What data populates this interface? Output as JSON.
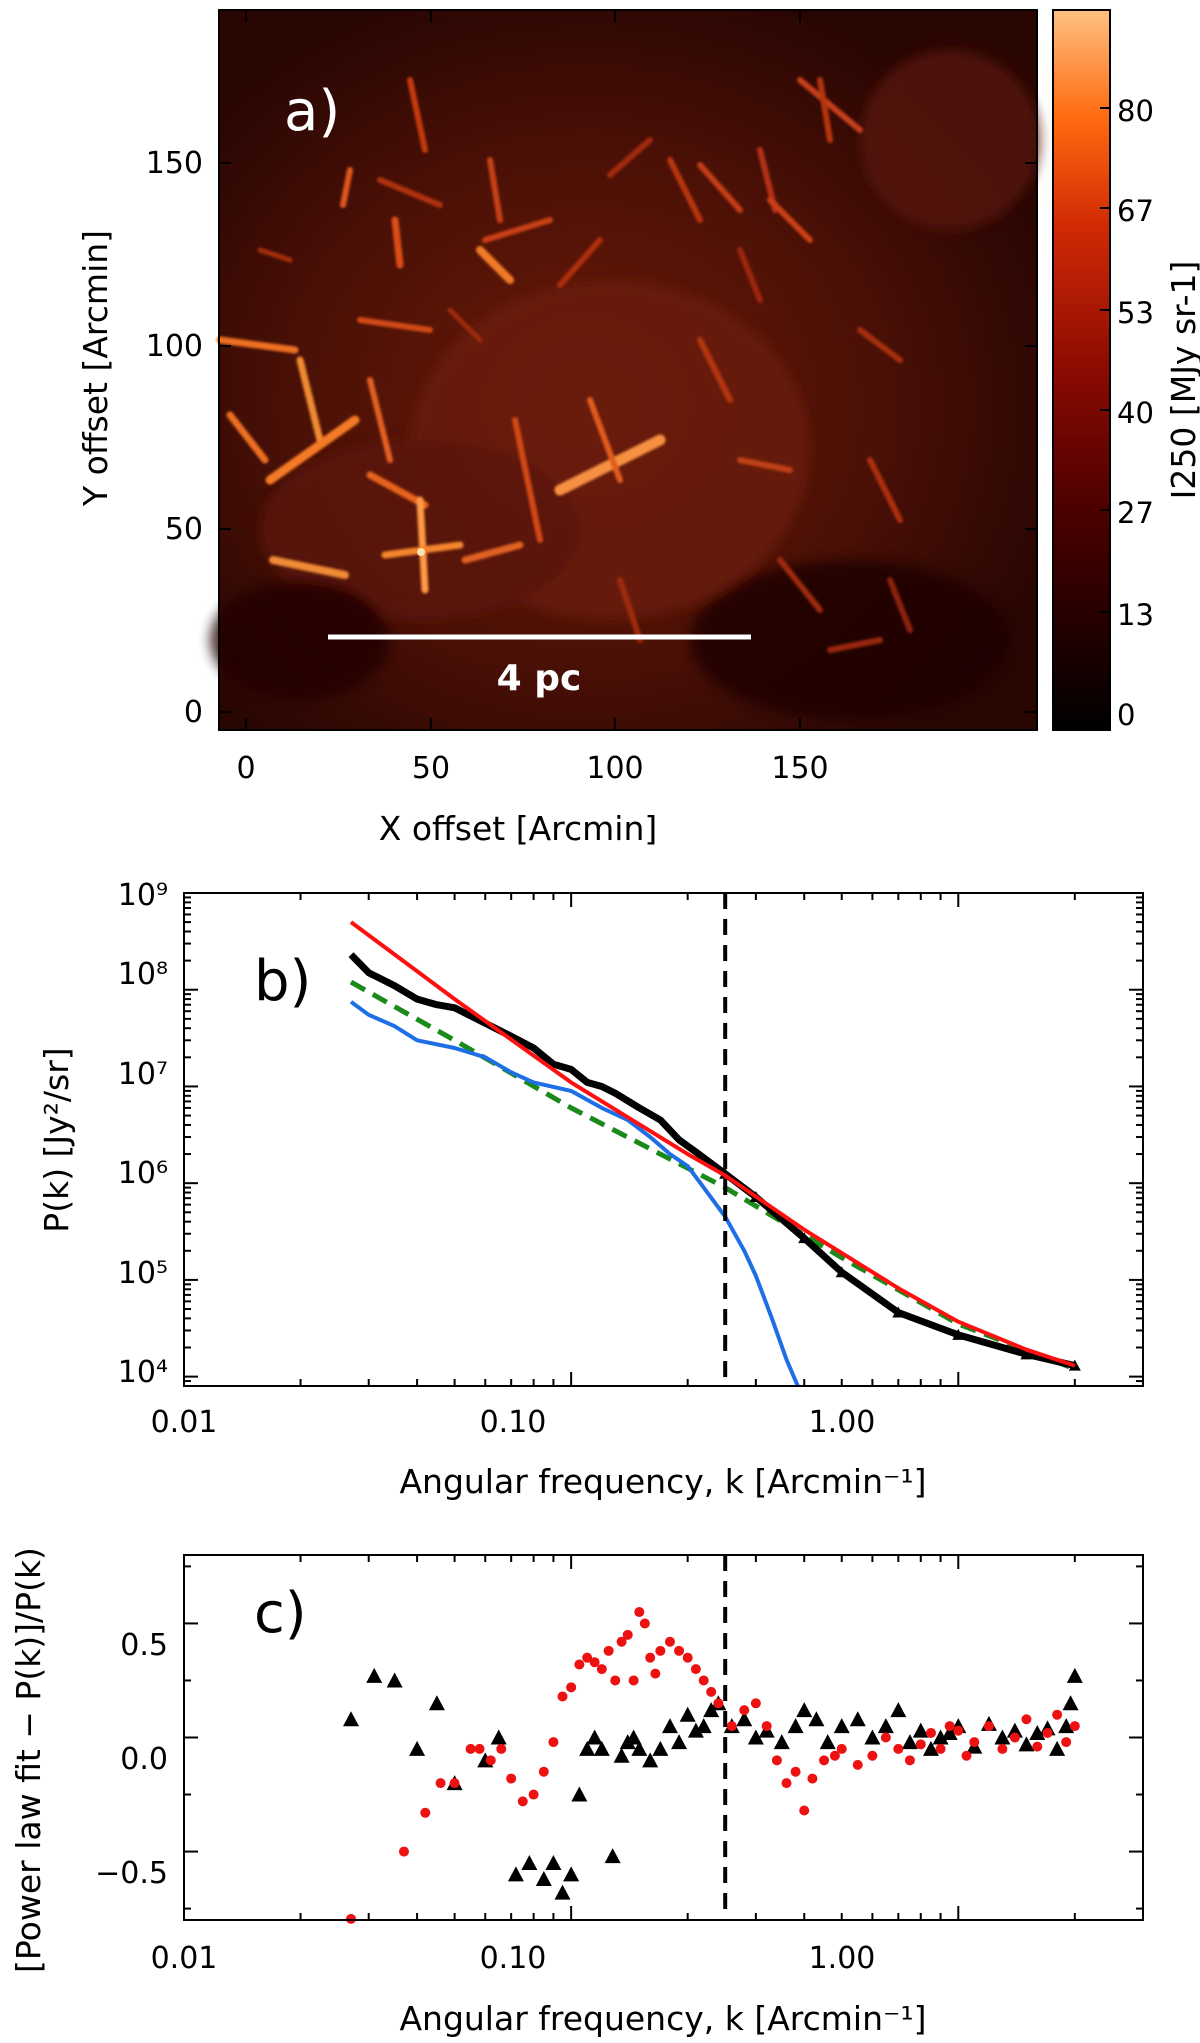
{
  "panel_a": {
    "panel_label": "a)",
    "xlabel": "X offset [Arcmin]",
    "ylabel": "Y offset [Arcmin]",
    "xticks": [
      "0",
      "50",
      "100",
      "150"
    ],
    "yticks": [
      "0",
      "50",
      "100",
      "150"
    ],
    "scalebar_label": "4 pc",
    "colorbar_label": "I250 [MJy sr-1]",
    "colorbar_ticks": [
      "0",
      "13",
      "27",
      "40",
      "53",
      "67",
      "80"
    ]
  },
  "panel_b": {
    "panel_label": "b)",
    "xlabel": "Angular frequency, k [Arcmin⁻¹]",
    "ylabel": "P(k) [Jy²/sr]",
    "xticks": [
      "0.01",
      "0.10",
      "1.00"
    ],
    "yticks": [
      "10⁴",
      "10⁵",
      "10⁶",
      "10⁷",
      "10⁸",
      "10⁹"
    ]
  },
  "panel_c": {
    "panel_label": "c)",
    "xlabel": "Angular frequency, k [Arcmin⁻¹]",
    "ylabel": "[Power law fit − P(k)]/P(k)",
    "xticks": [
      "0.01",
      "0.10",
      "1.00"
    ],
    "yticks": [
      "−0.5",
      "0.0",
      "0.5"
    ]
  },
  "chart_data": [
    {
      "type": "heatmap",
      "panel": "a",
      "xlabel": "X offset [Arcmin]",
      "ylabel": "Y offset [Arcmin]",
      "xlim": [
        -8,
        190
      ],
      "ylim": [
        -5,
        190
      ],
      "colorbar": {
        "label": "I250 [MJy sr-1]",
        "range": [
          0,
          80
        ],
        "colormap": "black-red-orange-white"
      },
      "annotations": [
        "4 pc"
      ],
      "grid": false
    },
    {
      "type": "line",
      "panel": "b",
      "xlabel": "Angular frequency, k [Arcmin⁻¹]",
      "ylabel": "P(k) [Jy²/sr]",
      "xscale": "log",
      "yscale": "log",
      "xlim": [
        0.01,
        3.0
      ],
      "ylim": [
        8000,
        1000000000
      ],
      "vline": 0.25,
      "grid": false,
      "series": [
        {
          "color": "#000000",
          "style": "solid-thick-with-triangles",
          "x": [
            0.027,
            0.03,
            0.035,
            0.04,
            0.045,
            0.05,
            0.06,
            0.07,
            0.08,
            0.09,
            0.1,
            0.11,
            0.12,
            0.13,
            0.15,
            0.17,
            0.19,
            0.21,
            0.25,
            0.3,
            0.4,
            0.5,
            0.7,
            1.0,
            1.5,
            2.0
          ],
          "y": [
            230000000,
            150000000,
            110000000,
            80000000,
            70000000,
            65000000,
            45000000,
            33000000,
            25000000,
            17000000,
            15000000,
            11000000,
            10000000,
            8500000,
            6000000,
            4500000,
            2800000,
            2100000,
            1250000,
            720000,
            270000,
            120000,
            46000,
            27000,
            17000,
            13000
          ]
        },
        {
          "color": "#ff1010",
          "style": "solid",
          "x": [
            0.027,
            0.05,
            0.1,
            0.2,
            0.25,
            0.4,
            0.7,
            1.0,
            1.5,
            2.0
          ],
          "y": [
            500000000,
            80000000,
            11000000,
            2000000,
            1200000,
            330000,
            82000,
            37000,
            19000,
            13000
          ]
        },
        {
          "color": "#1e6fe6",
          "style": "solid",
          "x": [
            0.027,
            0.03,
            0.035,
            0.04,
            0.05,
            0.06,
            0.07,
            0.08,
            0.1,
            0.12,
            0.14,
            0.16,
            0.18,
            0.2,
            0.22,
            0.25,
            0.28,
            0.3,
            0.33,
            0.36,
            0.385
          ],
          "y": [
            75000000,
            55000000,
            42000000,
            30000000,
            25000000,
            20000000,
            14000000,
            11000000,
            9000000,
            6000000,
            4500000,
            3000000,
            2000000,
            1500000,
            900000,
            450000,
            200000,
            110000,
            40000,
            15000,
            8000
          ]
        },
        {
          "color": "#1a8a1a",
          "style": "dashed",
          "x": [
            0.027,
            0.05,
            0.1,
            0.25,
            0.5,
            1.0,
            2.0
          ],
          "y": [
            120000000,
            30000000,
            6000000,
            900000,
            170000,
            35000,
            12000
          ]
        }
      ]
    },
    {
      "type": "scatter",
      "panel": "c",
      "xlabel": "Angular frequency, k [Arcmin⁻¹]",
      "ylabel": "[Power law fit − P(k)]/P(k)",
      "xscale": "log",
      "xlim": [
        0.01,
        3.0
      ],
      "ylim": [
        -0.8,
        0.8
      ],
      "vline": 0.25,
      "grid": false,
      "series": [
        {
          "marker": "triangle",
          "color": "#000000",
          "x": [
            0.027,
            0.031,
            0.035,
            0.04,
            0.045,
            0.05,
            0.06,
            0.065,
            0.072,
            0.078,
            0.085,
            0.09,
            0.095,
            0.1,
            0.105,
            0.11,
            0.115,
            0.12,
            0.128,
            0.135,
            0.14,
            0.145,
            0.15,
            0.16,
            0.17,
            0.18,
            0.19,
            0.2,
            0.21,
            0.22,
            0.23,
            0.24,
            0.26,
            0.28,
            0.3,
            0.32,
            0.35,
            0.38,
            0.4,
            0.43,
            0.46,
            0.5,
            0.55,
            0.6,
            0.65,
            0.7,
            0.75,
            0.8,
            0.85,
            0.9,
            0.95,
            1.0,
            1.1,
            1.2,
            1.3,
            1.4,
            1.5,
            1.6,
            1.7,
            1.8,
            1.9,
            1.95,
            2.0
          ],
          "y": [
            0.08,
            0.27,
            0.25,
            -0.05,
            0.15,
            -0.2,
            -0.1,
            0.0,
            -0.6,
            -0.55,
            -0.62,
            -0.55,
            -0.68,
            -0.6,
            -0.25,
            -0.05,
            0.0,
            -0.05,
            -0.52,
            -0.08,
            -0.02,
            0.0,
            -0.05,
            -0.1,
            -0.05,
            0.05,
            -0.02,
            0.1,
            0.03,
            0.05,
            0.12,
            0.15,
            0.05,
            0.08,
            0.0,
            0.03,
            -0.02,
            0.05,
            0.12,
            0.08,
            -0.02,
            0.05,
            0.08,
            0.0,
            0.05,
            0.12,
            -0.02,
            0.03,
            -0.05,
            0.0,
            0.02,
            0.05,
            -0.04,
            0.06,
            0.0,
            0.03,
            -0.03,
            0.02,
            0.04,
            -0.05,
            0.05,
            0.15,
            0.27
          ]
        },
        {
          "marker": "circle",
          "color": "#ee1111",
          "x": [
            0.027,
            0.037,
            0.042,
            0.046,
            0.05,
            0.055,
            0.058,
            0.062,
            0.066,
            0.07,
            0.075,
            0.08,
            0.085,
            0.09,
            0.095,
            0.1,
            0.105,
            0.11,
            0.115,
            0.12,
            0.125,
            0.13,
            0.135,
            0.14,
            0.145,
            0.15,
            0.155,
            0.16,
            0.165,
            0.17,
            0.18,
            0.19,
            0.2,
            0.21,
            0.22,
            0.23,
            0.24,
            0.26,
            0.28,
            0.3,
            0.32,
            0.34,
            0.36,
            0.38,
            0.4,
            0.42,
            0.45,
            0.48,
            0.5,
            0.55,
            0.6,
            0.65,
            0.7,
            0.75,
            0.8,
            0.85,
            0.9,
            0.95,
            1.0,
            1.05,
            1.1,
            1.2,
            1.3,
            1.4,
            1.5,
            1.6,
            1.7,
            1.8,
            1.9,
            2.0
          ],
          "y": [
            -0.82,
            -0.5,
            -0.33,
            -0.2,
            -0.2,
            -0.05,
            -0.05,
            -0.1,
            -0.05,
            -0.18,
            -0.28,
            -0.25,
            -0.15,
            -0.02,
            0.18,
            0.22,
            0.32,
            0.35,
            0.33,
            0.3,
            0.38,
            0.25,
            0.42,
            0.45,
            0.25,
            0.55,
            0.5,
            0.35,
            0.28,
            0.38,
            0.42,
            0.38,
            0.35,
            0.3,
            0.25,
            0.2,
            0.15,
            0.05,
            0.12,
            0.15,
            0.05,
            -0.1,
            -0.2,
            -0.15,
            -0.32,
            -0.18,
            -0.1,
            -0.08,
            -0.05,
            -0.12,
            -0.08,
            0.0,
            -0.05,
            -0.1,
            -0.03,
            0.02,
            -0.05,
            0.05,
            0.03,
            -0.08,
            -0.02,
            0.05,
            -0.05,
            0.0,
            0.08,
            -0.04,
            0.02,
            0.1,
            -0.02,
            0.05
          ]
        }
      ]
    }
  ]
}
